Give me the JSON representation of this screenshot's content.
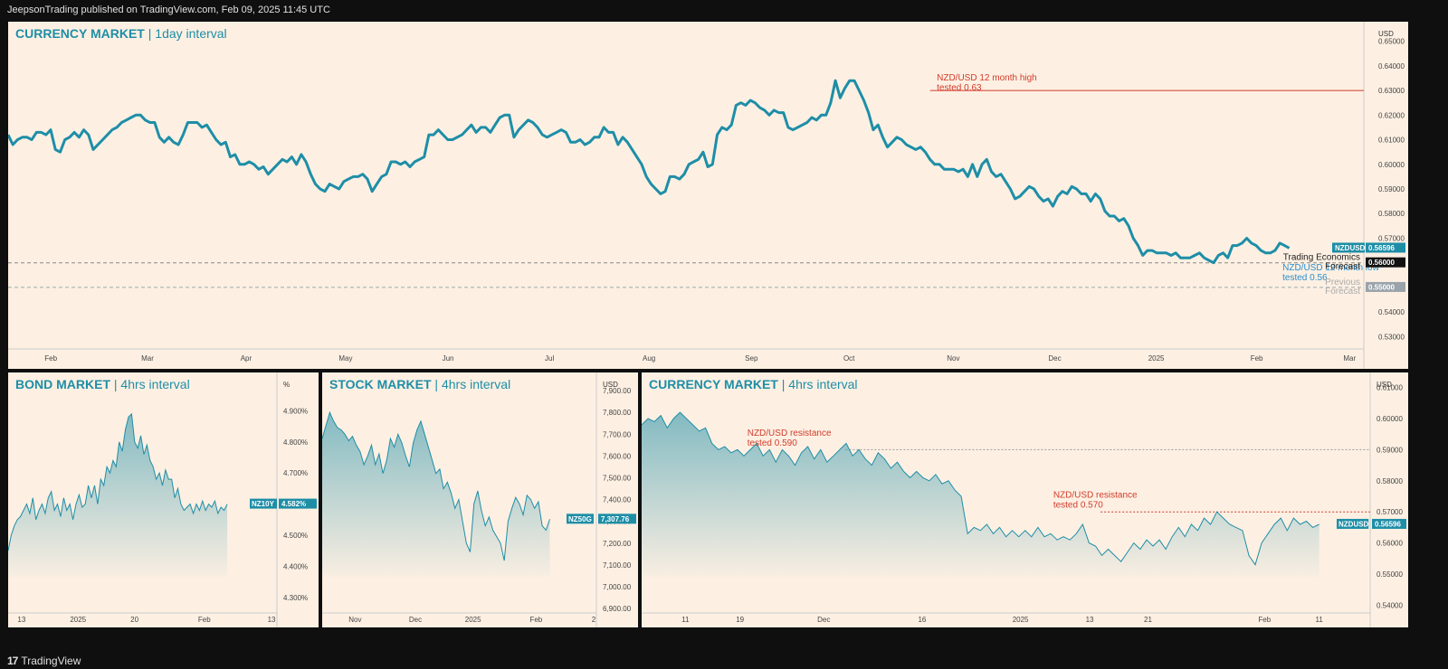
{
  "header": {
    "published": "JeepsonTrading published on TradingView.com, Feb 09, 2025 11:45 UTC"
  },
  "footer": {
    "brand_logo": "17",
    "brand_name": "TradingView"
  },
  "colors": {
    "line": "#1e8ea7",
    "red": "#d23b2a",
    "blue": "#2a8ecc",
    "panel_bg": "#fdf0e3"
  },
  "chart_data": [
    {
      "id": "main",
      "type": "line",
      "title": "CURRENCY MARKET",
      "subtitle": "1day interval",
      "unit": "USD",
      "ylim": [
        0.525,
        0.655
      ],
      "yticks": [
        "0.65000",
        "0.64000",
        "0.63000",
        "0.62000",
        "0.61000",
        "0.60000",
        "0.59000",
        "0.58000",
        "0.57000",
        "0.56000",
        "0.55000",
        "0.54000",
        "0.53000"
      ],
      "xticks": [
        {
          "label": "Feb",
          "t": 0.045
        },
        {
          "label": "Mar",
          "t": 0.147
        },
        {
          "label": "Apr",
          "t": 0.251
        },
        {
          "label": "May",
          "t": 0.356
        },
        {
          "label": "Jun",
          "t": 0.464
        },
        {
          "label": "Jul",
          "t": 0.571
        },
        {
          "label": "Aug",
          "t": 0.676
        },
        {
          "label": "Sep",
          "t": 0.784
        },
        {
          "label": "Oct",
          "t": 0.887
        },
        {
          "label": "Nov",
          "t": 0.997
        },
        {
          "label": "Dec",
          "t": 1.104
        },
        {
          "label": "2025",
          "t": 1.211
        },
        {
          "label": "Feb",
          "t": 1.317
        },
        {
          "label": "Mar",
          "t": 1.415
        }
      ],
      "series_name": "NZDUSD",
      "last_value": "0.56596",
      "values": [
        0.612,
        0.608,
        0.61,
        0.611,
        0.611,
        0.61,
        0.613,
        0.613,
        0.612,
        0.614,
        0.606,
        0.605,
        0.61,
        0.611,
        0.613,
        0.611,
        0.614,
        0.612,
        0.606,
        0.608,
        0.61,
        0.612,
        0.614,
        0.615,
        0.617,
        0.618,
        0.619,
        0.62,
        0.62,
        0.618,
        0.617,
        0.617,
        0.611,
        0.609,
        0.611,
        0.609,
        0.608,
        0.612,
        0.617,
        0.617,
        0.617,
        0.615,
        0.616,
        0.613,
        0.61,
        0.608,
        0.609,
        0.603,
        0.604,
        0.6,
        0.6,
        0.601,
        0.6,
        0.598,
        0.599,
        0.596,
        0.598,
        0.6,
        0.602,
        0.601,
        0.603,
        0.6,
        0.604,
        0.601,
        0.596,
        0.592,
        0.59,
        0.589,
        0.592,
        0.591,
        0.59,
        0.593,
        0.594,
        0.595,
        0.595,
        0.596,
        0.594,
        0.589,
        0.592,
        0.595,
        0.596,
        0.601,
        0.601,
        0.6,
        0.601,
        0.599,
        0.601,
        0.602,
        0.603,
        0.612,
        0.612,
        0.614,
        0.612,
        0.61,
        0.61,
        0.611,
        0.612,
        0.614,
        0.616,
        0.613,
        0.615,
        0.615,
        0.613,
        0.616,
        0.619,
        0.62,
        0.62,
        0.611,
        0.614,
        0.616,
        0.618,
        0.617,
        0.615,
        0.612,
        0.611,
        0.612,
        0.613,
        0.614,
        0.613,
        0.609,
        0.609,
        0.61,
        0.608,
        0.609,
        0.611,
        0.611,
        0.615,
        0.613,
        0.613,
        0.608,
        0.611,
        0.609,
        0.606,
        0.603,
        0.6,
        0.595,
        0.592,
        0.59,
        0.588,
        0.589,
        0.595,
        0.595,
        0.594,
        0.596,
        0.6,
        0.601,
        0.602,
        0.605,
        0.599,
        0.6,
        0.612,
        0.615,
        0.614,
        0.616,
        0.624,
        0.625,
        0.624,
        0.626,
        0.625,
        0.623,
        0.622,
        0.62,
        0.622,
        0.621,
        0.621,
        0.615,
        0.614,
        0.615,
        0.616,
        0.617,
        0.619,
        0.618,
        0.62,
        0.62,
        0.625,
        0.634,
        0.627,
        0.631,
        0.634,
        0.634,
        0.63,
        0.626,
        0.621,
        0.614,
        0.616,
        0.611,
        0.607,
        0.609,
        0.611,
        0.61,
        0.608,
        0.607,
        0.606,
        0.607,
        0.605,
        0.602,
        0.6,
        0.6,
        0.598,
        0.598,
        0.598,
        0.597,
        0.598,
        0.595,
        0.6,
        0.595,
        0.6,
        0.602,
        0.597,
        0.595,
        0.596,
        0.593,
        0.59,
        0.586,
        0.587,
        0.589,
        0.591,
        0.59,
        0.587,
        0.585,
        0.586,
        0.583,
        0.587,
        0.589,
        0.588,
        0.591,
        0.59,
        0.588,
        0.588,
        0.585,
        0.588,
        0.586,
        0.581,
        0.579,
        0.579,
        0.577,
        0.578,
        0.575,
        0.57,
        0.567,
        0.563,
        0.565,
        0.565,
        0.564,
        0.564,
        0.564,
        0.563,
        0.564,
        0.562,
        0.562,
        0.562,
        0.563,
        0.564,
        0.562,
        0.561,
        0.56,
        0.563,
        0.564,
        0.562,
        0.567,
        0.567,
        0.568,
        0.57,
        0.568,
        0.567,
        0.565,
        0.564,
        0.564,
        0.565,
        0.568,
        0.567,
        0.566
      ],
      "hlines": [
        {
          "value": 0.63,
          "color": "#d23b2a",
          "style": "solid",
          "from": 0.68
        },
        {
          "value": 0.56,
          "color": "#888",
          "style": "dashed",
          "from": 0
        },
        {
          "value": 0.55,
          "color": "#9aa",
          "style": "dashed",
          "from": 0
        }
      ],
      "annotations": [
        {
          "lines": [
            "NZD/USD 12 month high",
            "tested 0.63"
          ],
          "t": 0.685,
          "value": 0.634,
          "cls": "ann-red"
        },
        {
          "lines": [
            "NZD/USD 12 month low",
            "tested 0.56"
          ],
          "t": 0.94,
          "value": 0.557,
          "cls": "ann-blue"
        }
      ],
      "price_tags": [
        {
          "label": "NZDUSD",
          "value": "0.56596",
          "y": 0.56596,
          "color": "#1e8ea7"
        },
        {
          "label": "Trading Economics Forecast",
          "value": "0.56000",
          "y": 0.56,
          "color": "#111"
        },
        {
          "label": "Previous Forecast",
          "value": "0.55000",
          "y": 0.55,
          "color": "#9aa3aa"
        }
      ]
    },
    {
      "id": "bond",
      "type": "area",
      "title": "BOND MARKET",
      "subtitle": "4hrs interval",
      "unit": "%",
      "ylim": [
        4.25,
        5.0
      ],
      "yticks": [
        "4.900%",
        "4.800%",
        "4.700%",
        "4.600%",
        "4.500%",
        "4.400%",
        "4.300%"
      ],
      "xticks": [
        {
          "label": "13",
          "t": 0.05
        },
        {
          "label": "2025",
          "t": 0.26
        },
        {
          "label": "20",
          "t": 0.47
        },
        {
          "label": "Feb",
          "t": 0.73
        },
        {
          "label": "13",
          "t": 0.98
        }
      ],
      "series_name": "NZ10Y",
      "last_value": "4.582%",
      "values": [
        4.45,
        4.5,
        4.53,
        4.55,
        4.56,
        4.58,
        4.6,
        4.57,
        4.62,
        4.55,
        4.58,
        4.6,
        4.57,
        4.62,
        4.64,
        4.58,
        4.6,
        4.56,
        4.62,
        4.58,
        4.6,
        4.55,
        4.6,
        4.63,
        4.59,
        4.6,
        4.66,
        4.62,
        4.66,
        4.6,
        4.68,
        4.66,
        4.72,
        4.7,
        4.74,
        4.72,
        4.8,
        4.77,
        4.84,
        4.88,
        4.89,
        4.8,
        4.78,
        4.82,
        4.76,
        4.79,
        4.74,
        4.72,
        4.68,
        4.7,
        4.66,
        4.71,
        4.68,
        4.68,
        4.62,
        4.65,
        4.6,
        4.58,
        4.59,
        4.6,
        4.57,
        4.6,
        4.58,
        4.61,
        4.58,
        4.6,
        4.59,
        4.61,
        4.57,
        4.59,
        4.58,
        4.6
      ]
    },
    {
      "id": "stock",
      "type": "area",
      "title": "STOCK MARKET",
      "subtitle": "4hrs interval",
      "unit": "USD",
      "ylim": [
        6880,
        7950
      ],
      "yticks": [
        "7,900.00",
        "7,800.00",
        "7,700.00",
        "7,600.00",
        "7,500.00",
        "7,400.00",
        "7,300.00",
        "7,200.00",
        "7,100.00",
        "7,000.00",
        "6,900.00"
      ],
      "xticks": [
        {
          "label": "Nov",
          "t": 0.12
        },
        {
          "label": "Dec",
          "t": 0.34
        },
        {
          "label": "2025",
          "t": 0.55
        },
        {
          "label": "Feb",
          "t": 0.78
        },
        {
          "label": "2",
          "t": 0.99
        }
      ],
      "series_name": "NZ50G",
      "last_value": "7,307.76",
      "values": [
        7680,
        7740,
        7800,
        7760,
        7730,
        7720,
        7700,
        7670,
        7690,
        7650,
        7620,
        7560,
        7600,
        7650,
        7560,
        7610,
        7520,
        7580,
        7680,
        7640,
        7700,
        7660,
        7600,
        7550,
        7660,
        7720,
        7760,
        7700,
        7640,
        7580,
        7520,
        7540,
        7450,
        7480,
        7430,
        7360,
        7400,
        7300,
        7200,
        7160,
        7380,
        7440,
        7350,
        7280,
        7320,
        7260,
        7230,
        7200,
        7120,
        7300,
        7360,
        7410,
        7380,
        7330,
        7420,
        7400,
        7360,
        7390,
        7280,
        7260,
        7310
      ]
    },
    {
      "id": "cur4h",
      "type": "area",
      "title": "CURRENCY MARKET",
      "subtitle": "4hrs interval",
      "unit": "USD",
      "ylim": [
        0.5375,
        0.6125
      ],
      "yticks": [
        "0.61000",
        "0.60000",
        "0.59000",
        "0.58000",
        "0.57000",
        "0.56000",
        "0.55000",
        "0.54000"
      ],
      "xticks": [
        {
          "label": "11",
          "t": 0.06
        },
        {
          "label": "19",
          "t": 0.135
        },
        {
          "label": "Dec",
          "t": 0.25
        },
        {
          "label": "16",
          "t": 0.385
        },
        {
          "label": "2025",
          "t": 0.52
        },
        {
          "label": "13",
          "t": 0.615
        },
        {
          "label": "21",
          "t": 0.695
        },
        {
          "label": "Feb",
          "t": 0.855
        },
        {
          "label": "11",
          "t": 0.93
        }
      ],
      "series_name": "NZDUSD",
      "last_value": "0.56596",
      "values": [
        0.598,
        0.6,
        0.599,
        0.601,
        0.597,
        0.6,
        0.602,
        0.6,
        0.598,
        0.596,
        0.597,
        0.592,
        0.59,
        0.591,
        0.589,
        0.59,
        0.588,
        0.59,
        0.592,
        0.588,
        0.59,
        0.586,
        0.59,
        0.588,
        0.585,
        0.589,
        0.591,
        0.587,
        0.59,
        0.586,
        0.588,
        0.59,
        0.592,
        0.588,
        0.59,
        0.587,
        0.585,
        0.589,
        0.587,
        0.584,
        0.586,
        0.583,
        0.581,
        0.583,
        0.581,
        0.58,
        0.582,
        0.579,
        0.58,
        0.577,
        0.575,
        0.563,
        0.565,
        0.564,
        0.566,
        0.563,
        0.565,
        0.562,
        0.564,
        0.562,
        0.564,
        0.562,
        0.565,
        0.562,
        0.563,
        0.561,
        0.562,
        0.561,
        0.563,
        0.566,
        0.56,
        0.559,
        0.556,
        0.558,
        0.556,
        0.554,
        0.557,
        0.56,
        0.558,
        0.561,
        0.559,
        0.561,
        0.558,
        0.562,
        0.565,
        0.562,
        0.566,
        0.564,
        0.568,
        0.566,
        0.57,
        0.568,
        0.566,
        0.565,
        0.564,
        0.556,
        0.553,
        0.56,
        0.563,
        0.566,
        0.568,
        0.564,
        0.568,
        0.566,
        0.567,
        0.565,
        0.566
      ],
      "hlines": [
        {
          "value": 0.59,
          "color": "#999",
          "style": "dotted",
          "from": 0.28
        },
        {
          "value": 0.57,
          "color": "#d23b2a",
          "style": "dotted",
          "from": 0.63
        }
      ],
      "annotations": [
        {
          "lines": [
            "NZD/USD resistance",
            "tested 0.590"
          ],
          "t": 0.145,
          "value": 0.5945,
          "cls": "ann-red"
        },
        {
          "lines": [
            "NZD/USD resistance",
            "tested 0.570"
          ],
          "t": 0.565,
          "value": 0.5745,
          "cls": "ann-red"
        }
      ]
    }
  ]
}
